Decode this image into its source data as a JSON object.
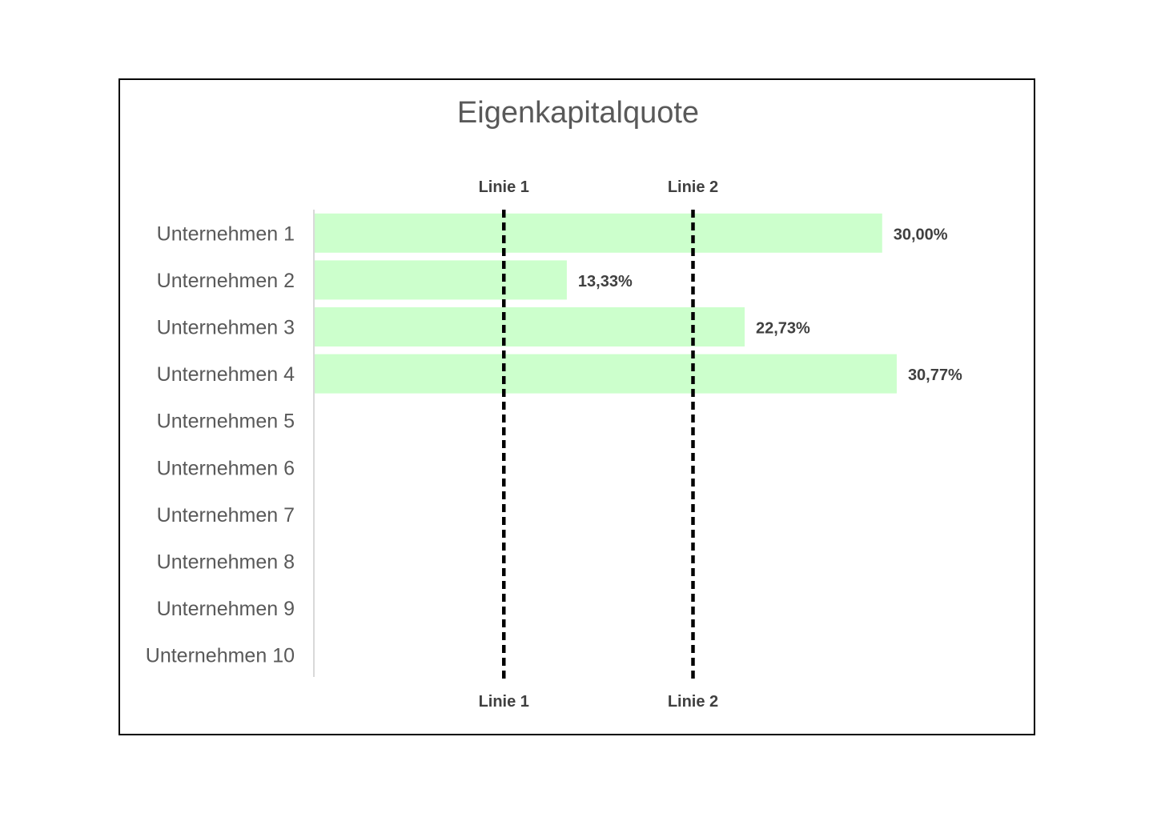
{
  "chart_data": {
    "type": "bar",
    "orientation": "horizontal",
    "title": "Eigenkapitalquote",
    "categories": [
      "Unternehmen 1",
      "Unternehmen 2",
      "Unternehmen 3",
      "Unternehmen 4",
      "Unternehmen 5",
      "Unternehmen 6",
      "Unternehmen 7",
      "Unternehmen 8",
      "Unternehmen 9",
      "Unternehmen 10"
    ],
    "values": [
      30.0,
      13.33,
      22.73,
      30.77,
      null,
      null,
      null,
      null,
      null,
      null
    ],
    "data_labels": [
      "30,00%",
      "13,33%",
      "22,73%",
      "30,77%",
      "",
      "",
      "",
      "",
      "",
      ""
    ],
    "xlim": [
      0,
      40
    ],
    "reference_lines": [
      {
        "label": "Linie 1",
        "value": 10
      },
      {
        "label": "Linie 2",
        "value": 20
      }
    ],
    "grid": false,
    "legend": "none",
    "colors": {
      "bar": "#ccffcc",
      "reference_line": "#000000",
      "axis": "#d9d9d9",
      "title": "#595959",
      "category_text": "#595959",
      "data_label_text": "#404040"
    }
  }
}
